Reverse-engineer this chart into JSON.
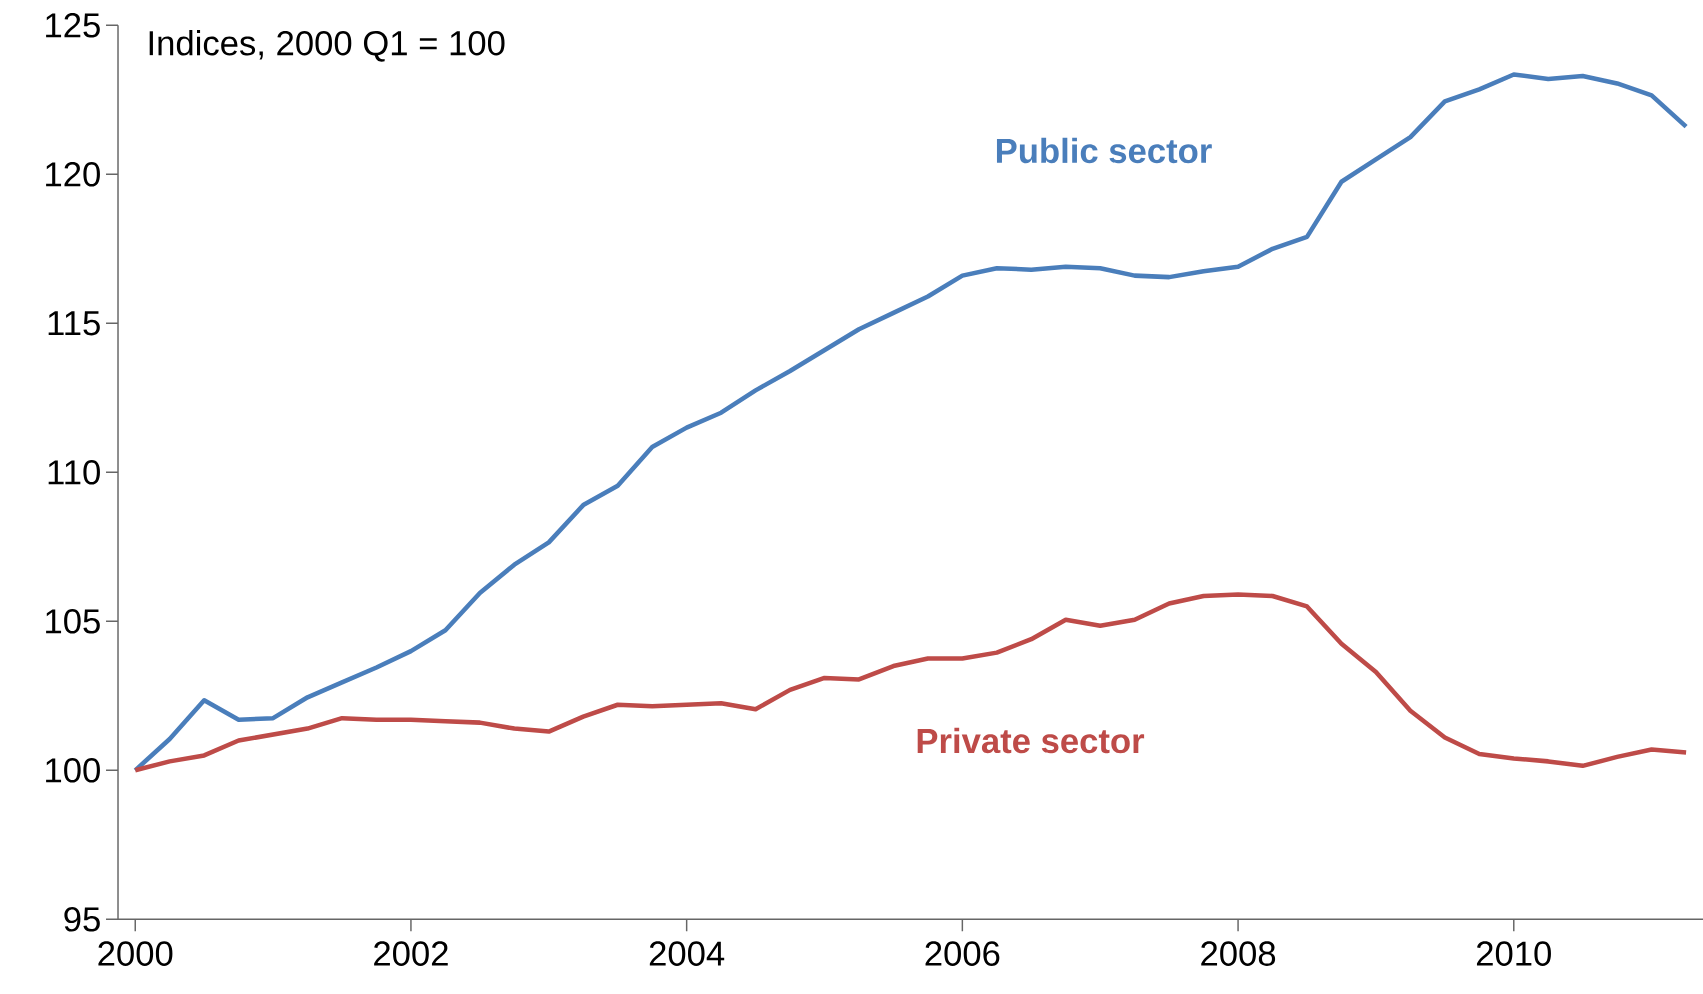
{
  "chart_data": {
    "type": "line",
    "title": "Indices, 2000 Q1 = 100",
    "x": [
      2000,
      2000.25,
      2000.5,
      2000.75,
      2001,
      2001.25,
      2001.5,
      2001.75,
      2002,
      2002.25,
      2002.5,
      2002.75,
      2003,
      2003.25,
      2003.5,
      2003.75,
      2004,
      2004.25,
      2004.5,
      2004.75,
      2005,
      2005.25,
      2005.5,
      2005.75,
      2006,
      2006.25,
      2006.5,
      2006.75,
      2007,
      2007.25,
      2007.5,
      2007.75,
      2008,
      2008.25,
      2008.5,
      2008.75,
      2009,
      2009.25,
      2009.5,
      2009.75,
      2010,
      2010.25,
      2010.5,
      2010.75,
      2011,
      2011.25
    ],
    "series": [
      {
        "name": "Public sector",
        "color": "#4a7ebb",
        "values": [
          100,
          101.05,
          102.35,
          101.7,
          101.75,
          102.45,
          102.95,
          103.45,
          104.0,
          104.7,
          105.95,
          106.9,
          107.65,
          108.9,
          109.55,
          110.85,
          111.5,
          112.0,
          112.75,
          113.4,
          114.1,
          114.8,
          115.35,
          115.9,
          116.6,
          116.85,
          116.8,
          116.9,
          116.85,
          116.6,
          116.55,
          116.75,
          116.9,
          117.5,
          117.9,
          119.75,
          120.5,
          121.25,
          122.45,
          122.85,
          123.35,
          123.2,
          123.3,
          123.05,
          122.65,
          121.6
        ]
      },
      {
        "name": "Private sector",
        "color": "#be4b48",
        "values": [
          100,
          100.3,
          100.5,
          101.0,
          101.2,
          101.4,
          101.75,
          101.7,
          101.7,
          101.65,
          101.6,
          101.4,
          101.3,
          101.8,
          102.2,
          102.15,
          102.2,
          102.25,
          102.05,
          102.7,
          103.1,
          103.05,
          103.5,
          103.75,
          103.75,
          103.95,
          104.4,
          105.05,
          104.85,
          105.05,
          105.6,
          105.85,
          105.9,
          105.85,
          105.5,
          104.25,
          103.3,
          102.0,
          101.1,
          100.55,
          100.4,
          100.3,
          100.15,
          100.45,
          100.7,
          100.6
        ]
      }
    ],
    "xlim": [
      1999.875,
      2011.375
    ],
    "xticks": [
      {
        "value": 2000,
        "label": "2000"
      },
      {
        "value": 2002,
        "label": "2002"
      },
      {
        "value": 2004,
        "label": "2004"
      },
      {
        "value": 2006,
        "label": "2006"
      },
      {
        "value": 2008,
        "label": "2008"
      },
      {
        "value": 2010,
        "label": "2010"
      }
    ],
    "ylim": [
      95,
      125
    ],
    "yticks": [
      95,
      100,
      105,
      110,
      115,
      120,
      125
    ],
    "grid": false,
    "legend": false,
    "marker": "none",
    "line_style": "solid"
  }
}
